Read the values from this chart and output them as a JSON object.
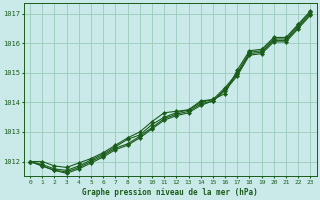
{
  "xlabel": "Graphe pression niveau de la mer (hPa)",
  "bg_color": "#caeaea",
  "grid_color": "#99ccbb",
  "line_color": "#1a5c1a",
  "hours": [
    0,
    1,
    2,
    3,
    4,
    5,
    6,
    7,
    8,
    9,
    10,
    11,
    12,
    13,
    14,
    15,
    16,
    17,
    18,
    19,
    20,
    21,
    22,
    23
  ],
  "series1": [
    1012.0,
    1012.0,
    1011.85,
    1011.8,
    1011.95,
    1012.1,
    1012.3,
    1012.55,
    1012.8,
    1013.0,
    1013.35,
    1013.65,
    1013.7,
    1013.75,
    1014.05,
    1014.1,
    1014.3,
    1015.1,
    1015.75,
    1015.8,
    1016.2,
    1016.2,
    1016.65,
    1017.1
  ],
  "series2": [
    1012.0,
    1011.9,
    1011.75,
    1011.7,
    1011.85,
    1012.05,
    1012.25,
    1012.5,
    1012.75,
    1012.9,
    1013.25,
    1013.5,
    1013.65,
    1013.75,
    1014.0,
    1014.1,
    1014.5,
    1015.0,
    1015.7,
    1015.75,
    1016.15,
    1016.15,
    1016.6,
    1017.05
  ],
  "series3": [
    1012.0,
    1011.85,
    1011.7,
    1011.65,
    1011.8,
    1012.0,
    1012.2,
    1012.45,
    1012.6,
    1012.85,
    1013.15,
    1013.45,
    1013.6,
    1013.7,
    1013.95,
    1014.05,
    1014.45,
    1014.95,
    1015.65,
    1015.7,
    1016.1,
    1016.1,
    1016.55,
    1017.0
  ],
  "series4": [
    1012.0,
    1011.85,
    1011.7,
    1011.6,
    1011.75,
    1011.95,
    1012.15,
    1012.4,
    1012.55,
    1012.8,
    1013.1,
    1013.4,
    1013.55,
    1013.65,
    1013.9,
    1014.05,
    1014.4,
    1014.9,
    1015.6,
    1015.65,
    1016.05,
    1016.05,
    1016.5,
    1016.95
  ],
  "ylim": [
    1011.5,
    1017.35
  ],
  "yticks": [
    1012,
    1013,
    1014,
    1015,
    1016,
    1017
  ],
  "xticks": [
    0,
    1,
    2,
    3,
    4,
    5,
    6,
    7,
    8,
    9,
    10,
    11,
    12,
    13,
    14,
    15,
    16,
    17,
    18,
    19,
    20,
    21,
    22,
    23
  ]
}
